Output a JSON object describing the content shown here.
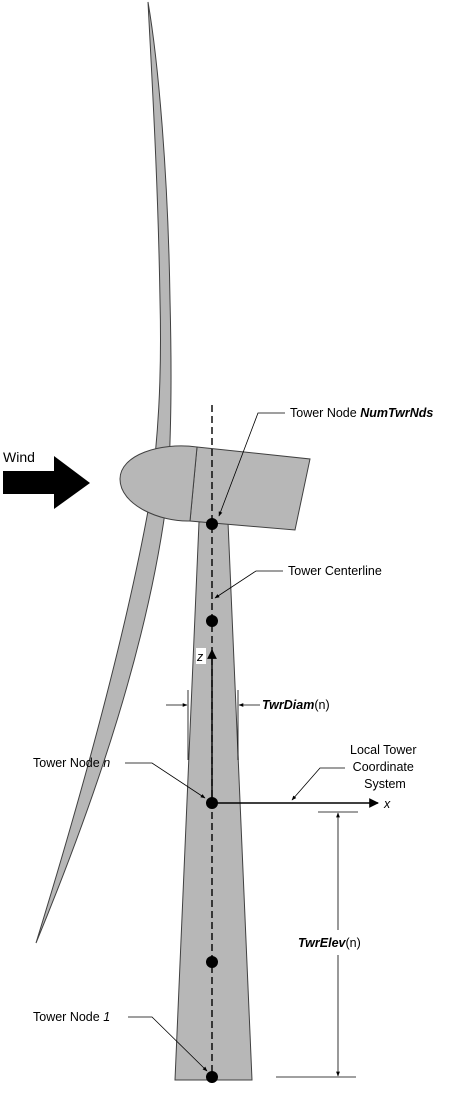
{
  "diagram": {
    "wind_label": "Wind",
    "node_top": {
      "prefix": "Tower Node ",
      "var": "NumTwrNds"
    },
    "centerline_label": "Tower Centerline",
    "z_axis_label": "z",
    "diam": {
      "var": "TwrDiam",
      "suffix": "(n)"
    },
    "node_n": {
      "prefix": "Tower Node ",
      "var": "n"
    },
    "local_coord": {
      "line1": "Local Tower",
      "line2": "Coordinate",
      "line3": "System"
    },
    "x_axis_label": "x",
    "elev": {
      "var": "TwrElev",
      "suffix": "(n)"
    },
    "node_1": {
      "prefix": "Tower Node ",
      "var": "1"
    },
    "colors": {
      "component_fill": "#b7b7b7",
      "outline": "#404040",
      "ink": "#000000"
    }
  }
}
